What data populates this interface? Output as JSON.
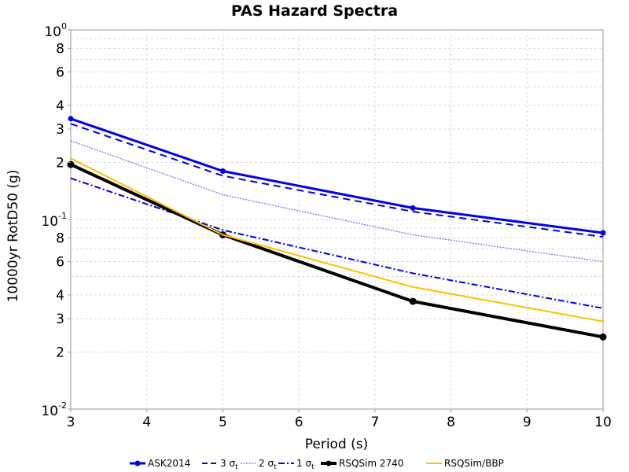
{
  "chart_data": {
    "type": "line",
    "title": "PAS Hazard Spectra",
    "xlabel": "Period (s)",
    "ylabel": "10000yr RotD50 (g)",
    "xlim": [
      3,
      10
    ],
    "ylim": [
      0.01,
      1
    ],
    "yscale": "log",
    "grid": true,
    "legend_position": "bottom",
    "x_ticks": [
      "3",
      "4",
      "5",
      "6",
      "7",
      "8",
      "9",
      "10"
    ],
    "y_ticks": [
      {
        "value": 1,
        "base": "10",
        "exp": "0"
      },
      {
        "value": 0.8,
        "label": "8"
      },
      {
        "value": 0.6,
        "label": "6"
      },
      {
        "value": 0.4,
        "label": "4"
      },
      {
        "value": 0.3,
        "label": "3"
      },
      {
        "value": 0.2,
        "label": "2"
      },
      {
        "value": 0.1,
        "base": "10",
        "exp": "-1"
      },
      {
        "value": 0.08,
        "label": "8"
      },
      {
        "value": 0.06,
        "label": "6"
      },
      {
        "value": 0.04,
        "label": "4"
      },
      {
        "value": 0.03,
        "label": "3"
      },
      {
        "value": 0.02,
        "label": "2"
      },
      {
        "value": 0.01,
        "base": "10",
        "exp": "-2"
      }
    ],
    "series": [
      {
        "name": "ASK2014",
        "legend_base": "ASK2014",
        "legend_sub": "",
        "color": "#0000e6",
        "width": 3,
        "dash": "",
        "markers": true,
        "x": [
          3,
          5,
          7.5,
          10
        ],
        "y": [
          0.34,
          0.18,
          0.115,
          0.085
        ]
      },
      {
        "name": "3 σt",
        "legend_base": "3 σ",
        "legend_sub": "t",
        "color": "#0000e6",
        "width": 2,
        "dash": "9,6",
        "markers": false,
        "x": [
          3,
          5,
          7.5,
          10
        ],
        "y": [
          0.32,
          0.17,
          0.11,
          0.081
        ]
      },
      {
        "name": "2 σt",
        "legend_base": "2 σ",
        "legend_sub": "t",
        "color": "#6a6af0",
        "width": 1.2,
        "dash": "2,1.5",
        "markers": false,
        "x": [
          3,
          5,
          7.5,
          10
        ],
        "y": [
          0.26,
          0.135,
          0.083,
          0.06
        ]
      },
      {
        "name": "1 σt",
        "legend_base": "1 σ",
        "legend_sub": "t",
        "color": "#0000e6",
        "width": 2,
        "dash": "8,3,2,3",
        "markers": false,
        "x": [
          3,
          5,
          7.5,
          10
        ],
        "y": [
          0.165,
          0.088,
          0.052,
          0.034
        ]
      },
      {
        "name": "RSQSim 2740",
        "legend_base": "RSQSim 2740",
        "legend_sub": "",
        "color": "#000000",
        "width": 4,
        "dash": "",
        "markers": true,
        "x": [
          3,
          5,
          7.5,
          10
        ],
        "y": [
          0.195,
          0.083,
          0.037,
          0.024
        ]
      },
      {
        "name": "RSQSim/BBP",
        "legend_base": "RSQSim/BBP",
        "legend_sub": "",
        "color": "#ffc000",
        "width": 2,
        "dash": "",
        "markers": false,
        "x": [
          3,
          5,
          7.5,
          10
        ],
        "y": [
          0.21,
          0.083,
          0.044,
          0.029
        ]
      }
    ]
  }
}
